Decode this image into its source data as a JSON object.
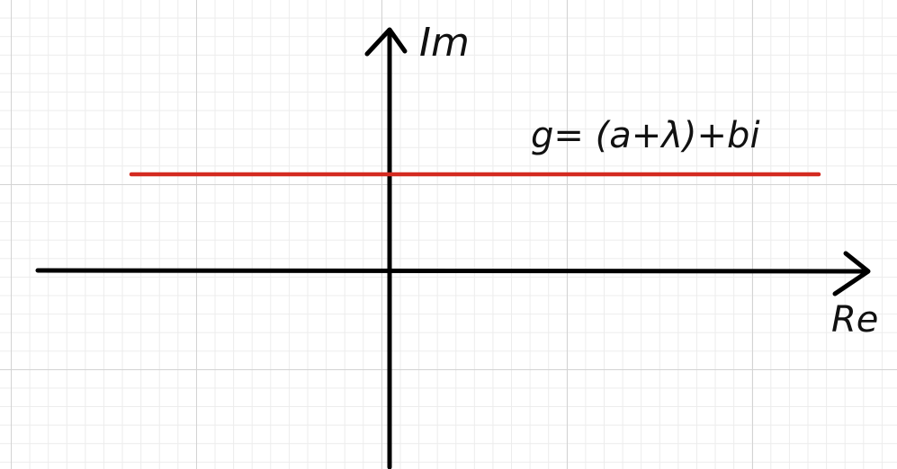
{
  "axes": {
    "x_label": "Re",
    "y_label": "Im",
    "axis_color": "#000000"
  },
  "line": {
    "label": "g= (a+λ)+bi",
    "color": "#d42a20"
  },
  "grid": {
    "major_color": "#d3d3d3",
    "minor_color": "#ececec"
  }
}
